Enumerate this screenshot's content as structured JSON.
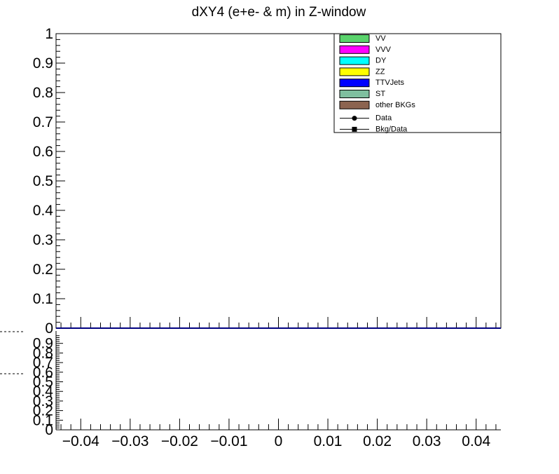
{
  "chart_data": {
    "type": "bar",
    "title": "dXY4 (e+e- & m) in Z-window",
    "xlim": [
      -0.045,
      0.045
    ],
    "x_ticks": [
      {
        "value": -0.04,
        "label": "−0.04"
      },
      {
        "value": -0.03,
        "label": "−0.03"
      },
      {
        "value": -0.02,
        "label": "−0.02"
      },
      {
        "value": -0.01,
        "label": "−0.01"
      },
      {
        "value": 0,
        "label": "0"
      },
      {
        "value": 0.01,
        "label": "0.01"
      },
      {
        "value": 0.02,
        "label": "0.02"
      },
      {
        "value": 0.03,
        "label": "0.03"
      },
      {
        "value": 0.04,
        "label": "0.04"
      }
    ],
    "upper_pad": {
      "ylim": [
        0,
        1
      ],
      "y_ticks": [
        {
          "value": 0,
          "label": "0"
        },
        {
          "value": 0.1,
          "label": "0.1"
        },
        {
          "value": 0.2,
          "label": "0.2"
        },
        {
          "value": 0.3,
          "label": "0.3"
        },
        {
          "value": 0.4,
          "label": "0.4"
        },
        {
          "value": 0.5,
          "label": "0.5"
        },
        {
          "value": 0.6,
          "label": "0.6"
        },
        {
          "value": 0.7,
          "label": "0.7"
        },
        {
          "value": 0.8,
          "label": "0.8"
        },
        {
          "value": 0.9,
          "label": "0.9"
        },
        {
          "value": 1,
          "label": "1"
        }
      ],
      "series": [
        {
          "name": "VV",
          "color": "#5ad36c",
          "values": []
        },
        {
          "name": "VVV",
          "color": "#ff00ff",
          "values": []
        },
        {
          "name": "DY",
          "color": "#00ffff",
          "values": []
        },
        {
          "name": "ZZ",
          "color": "#ffff00",
          "values": []
        },
        {
          "name": "TTVJets",
          "color": "#0000ff",
          "values": []
        },
        {
          "name": "ST",
          "color": "#7fbf9f",
          "values": []
        },
        {
          "name": "other BKGs",
          "color": "#8c6450",
          "values": []
        },
        {
          "name": "Data",
          "color": "#000000",
          "values": []
        }
      ],
      "legend": {
        "placement": "top-right",
        "entries": [
          {
            "label": "VV",
            "kind": "fill",
            "color": "#5ad36c"
          },
          {
            "label": "VVV",
            "kind": "fill",
            "color": "#ff00ff"
          },
          {
            "label": "DY",
            "kind": "fill",
            "color": "#00ffff"
          },
          {
            "label": "ZZ",
            "kind": "fill",
            "color": "#ffff00"
          },
          {
            "label": "TTVJets",
            "kind": "fill",
            "color": "#0000ff"
          },
          {
            "label": "ST",
            "kind": "fill",
            "color": "#7fbf9f"
          },
          {
            "label": "other BKGs",
            "kind": "fill",
            "color": "#8c6450"
          },
          {
            "label": "Data",
            "kind": "circle",
            "color": "#000000"
          },
          {
            "label": "Bkg/Data",
            "kind": "square",
            "color": "#000000"
          }
        ]
      }
    },
    "lower_pad": {
      "ylim": [
        0,
        1
      ],
      "y_ticks": [
        {
          "value": 0,
          "label": "0"
        },
        {
          "value": 0.1,
          "label": "0.1"
        },
        {
          "value": 0.2,
          "label": "0.2"
        },
        {
          "value": 0.3,
          "label": "0.3"
        },
        {
          "value": 0.4,
          "label": "0.4"
        },
        {
          "value": 0.5,
          "label": "0.5"
        },
        {
          "value": 0.6,
          "label": "0.6"
        },
        {
          "value": 0.7,
          "label": "0.7"
        },
        {
          "value": 0.8,
          "label": "0.8"
        },
        {
          "value": 0.9,
          "label": "0.9"
        }
      ],
      "series": [
        {
          "name": "Bkg/Data",
          "values": []
        }
      ],
      "reference_lines_dashed": [
        1.0,
        0.5
      ]
    },
    "grid": false
  }
}
